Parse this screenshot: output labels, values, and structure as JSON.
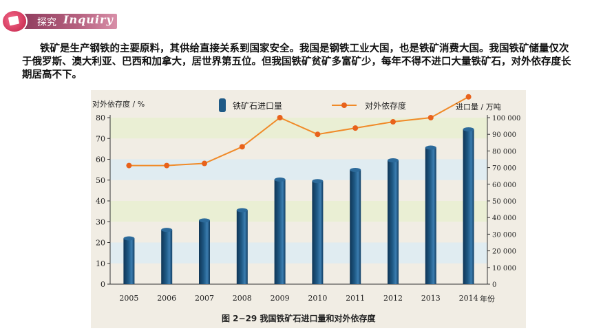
{
  "header": {
    "label": "探究",
    "script": "Inquiry"
  },
  "intro": {
    "paragraph": "铁矿是生产钢铁的主要原料，其供给直接关系到国家安全。我国是钢铁工业大国，也是铁矿消费大国。我国铁矿储量仅次于俄罗斯、澳大利亚、巴西和加拿大，居世界第五位。但我国铁矿贫矿多富矿少，每年不得不进口大量铁矿石，对外依存度长期居高不下。"
  },
  "colors": {
    "bar": "#1f5a86",
    "line": "#f08a28",
    "dot": "#e8621c",
    "stripe_blue": "#dcebf4",
    "stripe_green": "#e9efcf"
  },
  "chart_data": {
    "type": "bar",
    "caption": "图 2−29  我国铁矿石进口量和对外依存度",
    "categories": [
      "2005",
      "2006",
      "2007",
      "2008",
      "2009",
      "2010",
      "2011",
      "2012",
      "2013",
      "2014"
    ],
    "x_unit": "年份",
    "y_left": {
      "label": "对外依存度 / %",
      "ticks": [
        "0",
        "10",
        "20",
        "30",
        "40",
        "50",
        "60",
        "70",
        "80"
      ],
      "range": [
        0,
        80
      ]
    },
    "y_right": {
      "label": "进口量 / 万吨",
      "ticks": [
        "0",
        "10 000",
        "20 000",
        "30 000",
        "40 000",
        "50 000",
        "60 000",
        "70 000",
        "80 000",
        "90 000",
        "100 000"
      ],
      "range": [
        0,
        100000
      ]
    },
    "series": [
      {
        "name": "铁矿石进口量",
        "kind": "bar",
        "axis": "right",
        "values": [
          27500,
          32600,
          38300,
          44400,
          62800,
          61900,
          68600,
          74400,
          82000,
          93000
        ]
      },
      {
        "name": "对外依存度",
        "kind": "line",
        "axis": "left",
        "values": [
          57,
          57,
          58,
          66,
          80,
          72,
          75,
          78,
          80,
          90
        ]
      }
    ]
  }
}
